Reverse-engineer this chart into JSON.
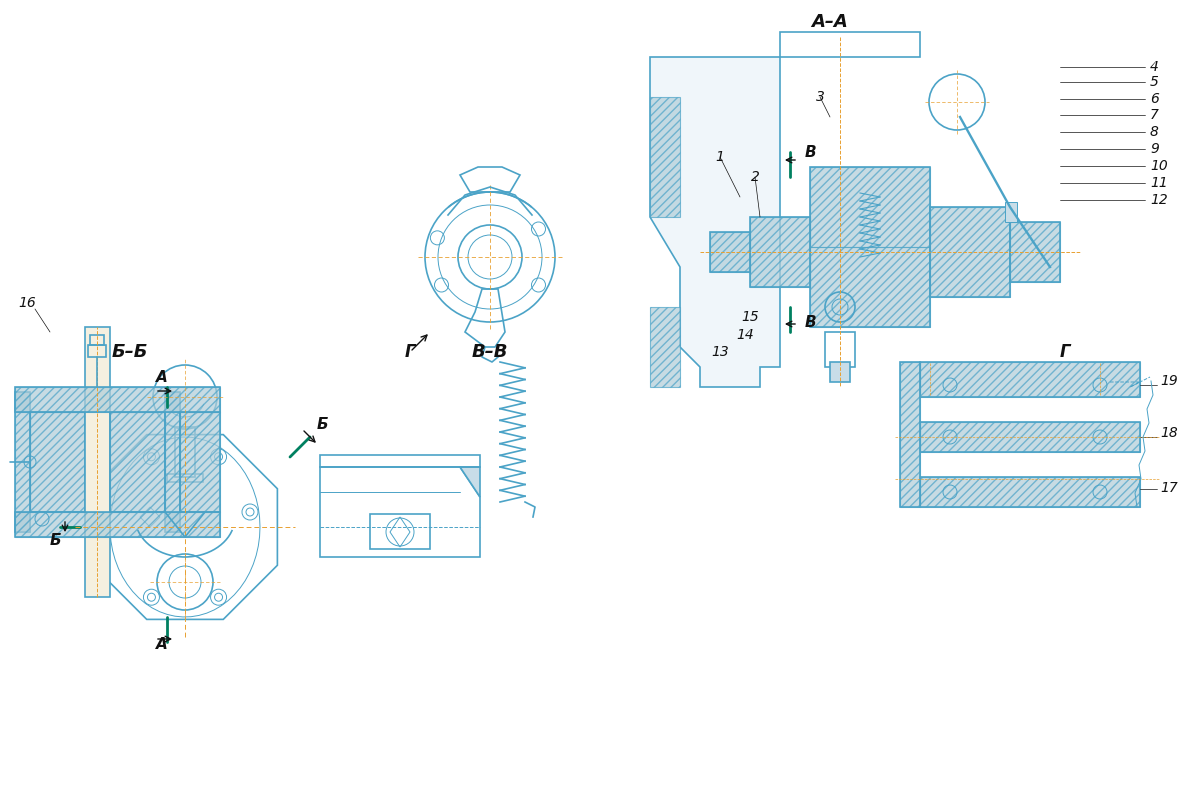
{
  "bg_color": "#ffffff",
  "line_color_blue": "#4ba3c7",
  "line_color_dark": "#1a6080",
  "hatch_color": "#b0cdd8",
  "orange_cl": "#e8a030",
  "green_cl": "#008060",
  "text_color": "#111111",
  "title": "",
  "view_labels": {
    "AA": "А–А",
    "BB": "Б–Б",
    "VV": "В–В",
    "A_arrow": "А",
    "B_arrow": "Б",
    "V_arrow": "В",
    "G_arrow": "Г",
    "G_view": "Г"
  },
  "part_numbers": [
    "1",
    "2",
    "3",
    "4",
    "5",
    "6",
    "7",
    "8",
    "9",
    "10",
    "11",
    "12",
    "13",
    "14",
    "15",
    "16",
    "17",
    "18",
    "19"
  ]
}
